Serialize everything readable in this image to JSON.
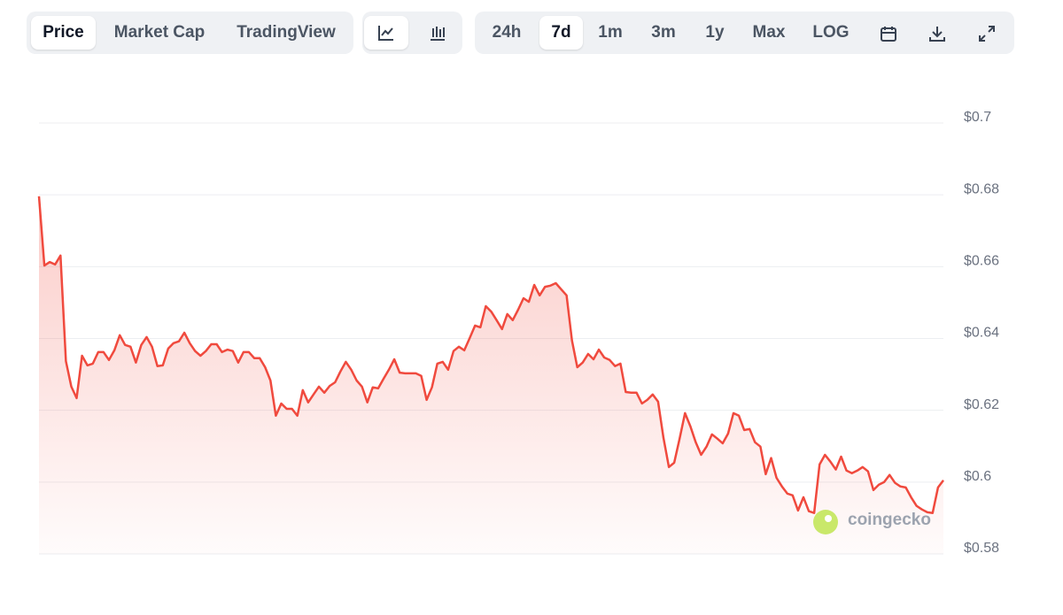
{
  "toolbar": {
    "view_tabs": [
      "Price",
      "Market Cap",
      "TradingView"
    ],
    "range_tabs": [
      "24h",
      "7d",
      "1m",
      "3m",
      "1y",
      "Max",
      "LOG"
    ]
  },
  "watermark": "coingecko",
  "chart_data": {
    "type": "line",
    "color": "#f04a3e",
    "values": [
      0.6796,
      0.6603,
      0.6613,
      0.6606,
      0.6631,
      0.6337,
      0.6266,
      0.6234,
      0.6352,
      0.6325,
      0.633,
      0.6362,
      0.6362,
      0.634,
      0.6367,
      0.6409,
      0.6382,
      0.6377,
      0.6333,
      0.6382,
      0.6404,
      0.6377,
      0.6323,
      0.6325,
      0.6372,
      0.6387,
      0.6392,
      0.6416,
      0.6387,
      0.6365,
      0.6352,
      0.6365,
      0.6384,
      0.6384,
      0.6362,
      0.6369,
      0.6365,
      0.6333,
      0.6362,
      0.6362,
      0.6345,
      0.6345,
      0.632,
      0.6283,
      0.6185,
      0.6219,
      0.6204,
      0.6204,
      0.6185,
      0.6256,
      0.6222,
      0.6244,
      0.6266,
      0.6249,
      0.6268,
      0.6278,
      0.6308,
      0.6335,
      0.6313,
      0.6283,
      0.6266,
      0.6222,
      0.6264,
      0.6261,
      0.6288,
      0.6313,
      0.6342,
      0.6305,
      0.6303,
      0.6303,
      0.6303,
      0.6296,
      0.6229,
      0.6264,
      0.633,
      0.6335,
      0.6313,
      0.6365,
      0.6377,
      0.6367,
      0.6401,
      0.6436,
      0.6431,
      0.649,
      0.6475,
      0.6451,
      0.6426,
      0.6468,
      0.6451,
      0.648,
      0.6512,
      0.6502,
      0.6549,
      0.652,
      0.6544,
      0.6547,
      0.6554,
      0.6537,
      0.652,
      0.6394,
      0.632,
      0.6333,
      0.6357,
      0.6342,
      0.6369,
      0.6347,
      0.634,
      0.6323,
      0.633,
      0.6251,
      0.6249,
      0.6249,
      0.6219,
      0.6229,
      0.6244,
      0.6224,
      0.6123,
      0.6042,
      0.6054,
      0.6121,
      0.6192,
      0.6155,
      0.6111,
      0.6076,
      0.6099,
      0.6133,
      0.6121,
      0.6108,
      0.6135,
      0.6192,
      0.6185,
      0.6145,
      0.6148,
      0.6111,
      0.6099,
      0.6022,
      0.6067,
      0.6012,
      0.5988,
      0.5968,
      0.5963,
      0.5921,
      0.5958,
      0.5919,
      0.5914,
      0.6049,
      0.6076,
      0.6057,
      0.6035,
      0.6071,
      0.6032,
      0.6025,
      0.6032,
      0.6042,
      0.603,
      0.5978,
      0.5993,
      0.6,
      0.602,
      0.5998,
      0.5988,
      0.5985,
      0.5958,
      0.5934,
      0.5924,
      0.5916,
      0.5914,
      0.5985,
      0.6005
    ],
    "ylim": [
      0.58,
      0.7
    ],
    "yticks": [
      {
        "value": 0.58,
        "label": "$0.58"
      },
      {
        "value": 0.6,
        "label": "$0.6"
      },
      {
        "value": 0.62,
        "label": "$0.62"
      },
      {
        "value": 0.64,
        "label": "$0.64"
      },
      {
        "value": 0.66,
        "label": "$0.66"
      },
      {
        "value": 0.68,
        "label": "$0.68"
      },
      {
        "value": 0.7,
        "label": "$0.7"
      }
    ],
    "grid": true
  }
}
